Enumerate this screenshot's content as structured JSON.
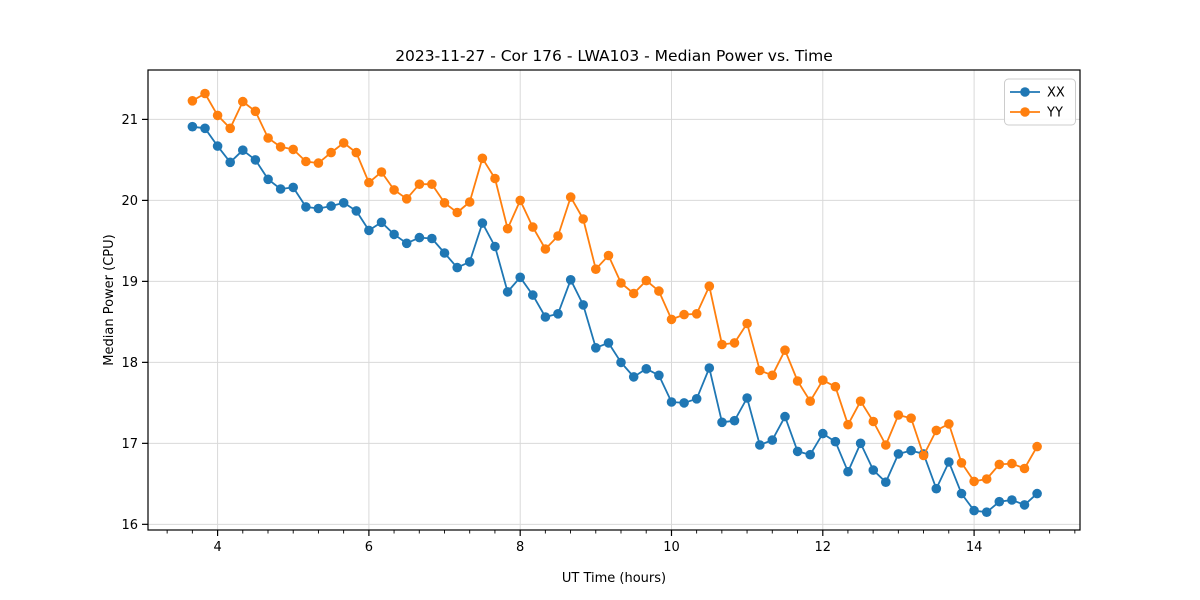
{
  "title": "2023-11-27 - Cor 176 - LWA103 - Median Power vs. Time",
  "xlabel": "UT Time (hours)",
  "ylabel": "Median Power (CPU)",
  "legend": {
    "position": "upper right",
    "entries": [
      {
        "label": "XX",
        "color": "#1f77b4"
      },
      {
        "label": "YY",
        "color": "#ff7f0e"
      }
    ]
  },
  "colors": {
    "series_xx": "#1f77b4",
    "series_yy": "#ff7f0e",
    "grid": "#d9d9d9",
    "spine": "#000000",
    "background": "#ffffff",
    "legend_border": "#cccccc"
  },
  "chart_data": {
    "type": "line",
    "title": "2023-11-27 - Cor 176 - LWA103 - Median Power vs. Time",
    "xlabel": "UT Time (hours)",
    "ylabel": "Median Power (CPU)",
    "xlim": [
      3.08,
      15.4
    ],
    "ylim": [
      15.93,
      21.61
    ],
    "xticks": [
      4,
      6,
      8,
      10,
      12,
      14
    ],
    "yticks": [
      16,
      17,
      18,
      19,
      20,
      21
    ],
    "x_minor_tick_step": 0.3333,
    "grid": true,
    "legend_position": "upper right",
    "marker": "circle",
    "x": [
      3.667,
      3.833,
      4.0,
      4.167,
      4.333,
      4.5,
      4.667,
      4.833,
      5.0,
      5.167,
      5.333,
      5.5,
      5.667,
      5.833,
      6.0,
      6.167,
      6.333,
      6.5,
      6.667,
      6.833,
      7.0,
      7.167,
      7.333,
      7.5,
      7.667,
      7.833,
      8.0,
      8.167,
      8.333,
      8.5,
      8.667,
      8.833,
      9.0,
      9.167,
      9.333,
      9.5,
      9.667,
      9.833,
      10.0,
      10.167,
      10.333,
      10.5,
      10.667,
      10.833,
      11.0,
      11.167,
      11.333,
      11.5,
      11.667,
      11.833,
      12.0,
      12.167,
      12.333,
      12.5,
      12.667,
      12.833,
      13.0,
      13.167,
      13.333,
      13.5,
      13.667,
      13.833,
      14.0,
      14.167,
      14.333,
      14.5,
      14.667,
      14.833
    ],
    "series": [
      {
        "name": "XX",
        "color": "#1f77b4",
        "values": [
          20.91,
          20.89,
          20.67,
          20.47,
          20.62,
          20.5,
          20.26,
          20.14,
          20.16,
          19.92,
          19.9,
          19.93,
          19.97,
          19.87,
          19.63,
          19.73,
          19.58,
          19.47,
          19.54,
          19.53,
          19.35,
          19.17,
          19.24,
          19.72,
          19.43,
          18.87,
          19.05,
          18.83,
          18.56,
          18.6,
          19.02,
          18.71,
          18.18,
          18.24,
          18.0,
          17.82,
          17.92,
          17.84,
          17.51,
          17.5,
          17.55,
          17.93,
          17.26,
          17.28,
          17.56,
          16.98,
          17.04,
          17.33,
          16.9,
          16.86,
          17.12,
          17.02,
          16.65,
          17.0,
          16.67,
          16.52,
          16.87,
          16.91,
          16.87,
          16.44,
          16.77,
          16.38,
          16.17,
          16.15,
          16.28,
          16.3,
          16.24,
          16.38
        ]
      },
      {
        "name": "YY",
        "color": "#ff7f0e",
        "values": [
          21.23,
          21.32,
          21.05,
          20.89,
          21.22,
          21.1,
          20.77,
          20.66,
          20.63,
          20.48,
          20.46,
          20.59,
          20.71,
          20.59,
          20.22,
          20.35,
          20.13,
          20.02,
          20.2,
          20.2,
          19.97,
          19.85,
          19.98,
          20.52,
          20.27,
          19.65,
          20.0,
          19.67,
          19.4,
          19.56,
          20.04,
          19.77,
          19.15,
          19.32,
          18.98,
          18.85,
          19.01,
          18.88,
          18.53,
          18.59,
          18.6,
          18.94,
          18.22,
          18.24,
          18.48,
          17.9,
          17.84,
          18.15,
          17.77,
          17.52,
          17.78,
          17.7,
          17.23,
          17.52,
          17.27,
          16.98,
          17.35,
          17.31,
          16.85,
          17.16,
          17.24,
          16.76,
          16.53,
          16.56,
          16.74,
          16.75,
          16.69,
          16.96
        ]
      }
    ]
  }
}
